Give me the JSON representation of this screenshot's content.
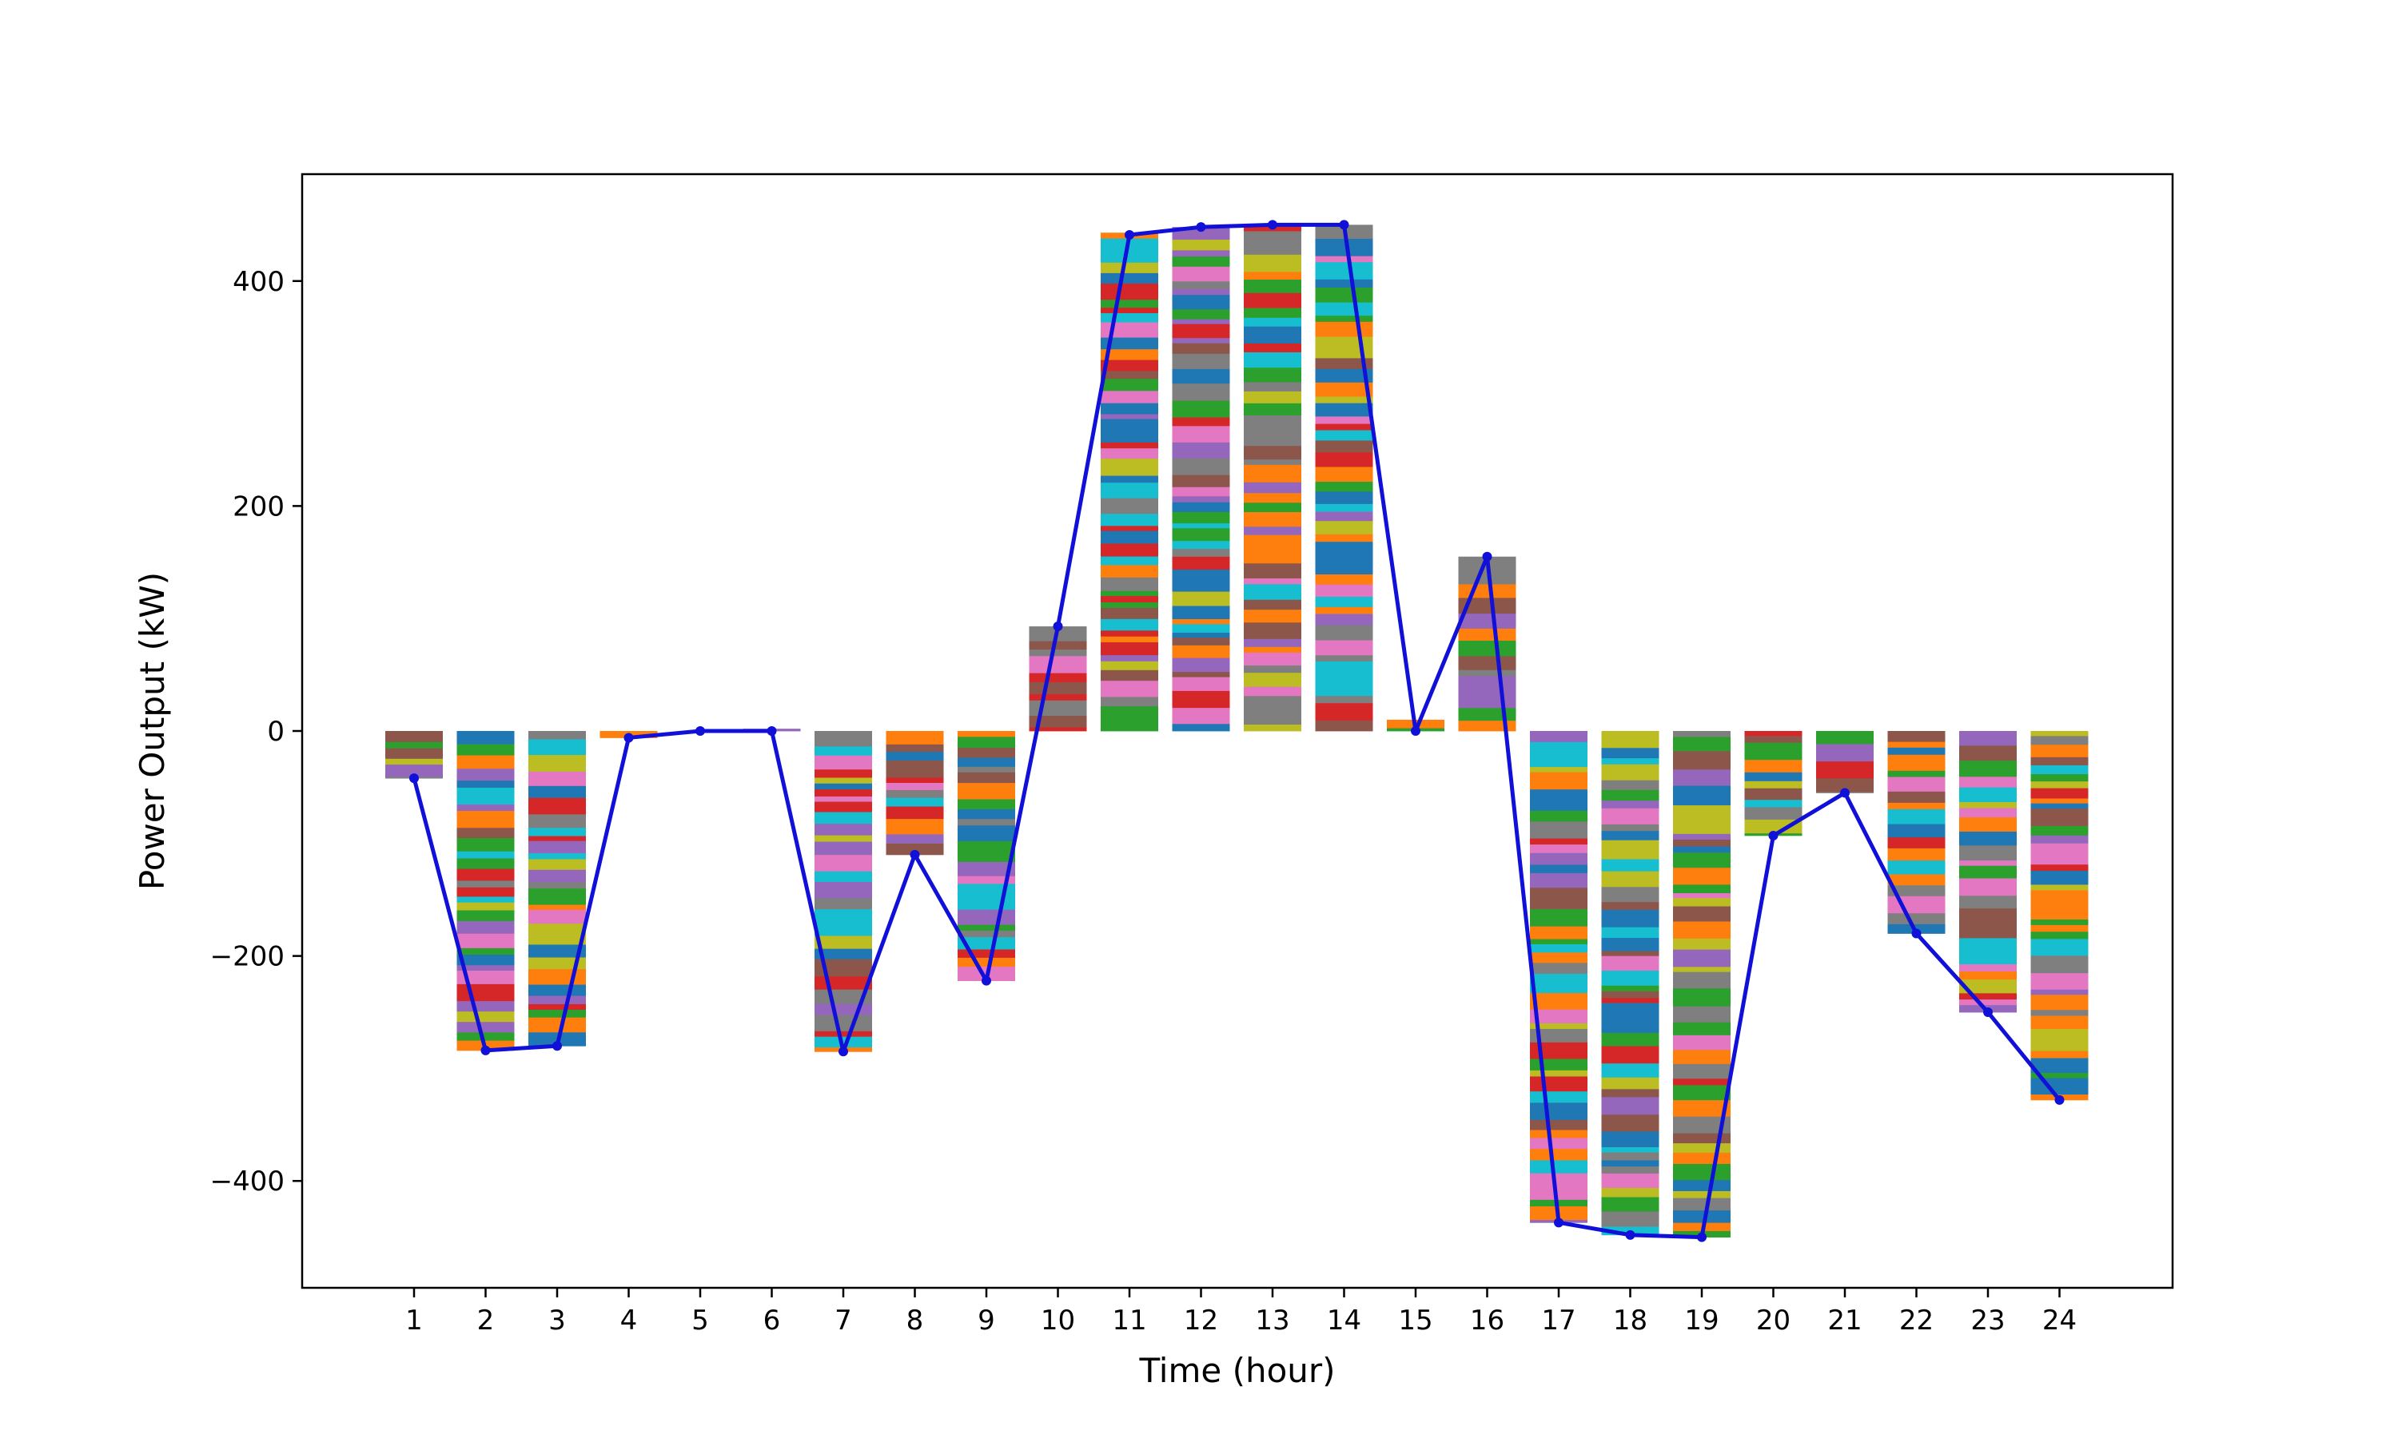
{
  "chart_data": {
    "type": "bar",
    "xlabel": "Time (hour)",
    "ylabel": "Power Output (kW)",
    "title": "",
    "categories": [
      "1",
      "2",
      "3",
      "4",
      "5",
      "6",
      "7",
      "8",
      "9",
      "10",
      "11",
      "12",
      "13",
      "14",
      "15",
      "16",
      "17",
      "18",
      "19",
      "20",
      "21",
      "22",
      "23",
      "24"
    ],
    "bar_values": [
      -42,
      -284,
      -280,
      -6,
      0,
      2,
      -285,
      -110,
      -222,
      93,
      443,
      448,
      450,
      450,
      10,
      155,
      -437,
      -448,
      -450,
      -93,
      -55,
      -180,
      -250,
      -328
    ],
    "line_values": [
      -42,
      -284,
      -280,
      -6,
      0,
      0,
      -285,
      -110,
      -222,
      93,
      441,
      448,
      450,
      450,
      0,
      155,
      -437,
      -448,
      -450,
      -93,
      -55,
      -180,
      -250,
      -328
    ],
    "line_color": "#1010d8",
    "stack_colors": [
      "#1f77b4",
      "#ff7f0e",
      "#2ca02c",
      "#d62728",
      "#9467bd",
      "#8c564b",
      "#e377c2",
      "#7f7f7f",
      "#bcbd22",
      "#17becf"
    ],
    "ylim": [
      -495,
      495
    ],
    "yticks": [
      -400,
      -200,
      0,
      200,
      400
    ],
    "ytick_labels": [
      "−400",
      "−200",
      "0",
      "200",
      "400"
    ],
    "grid": false,
    "legend": false
  }
}
